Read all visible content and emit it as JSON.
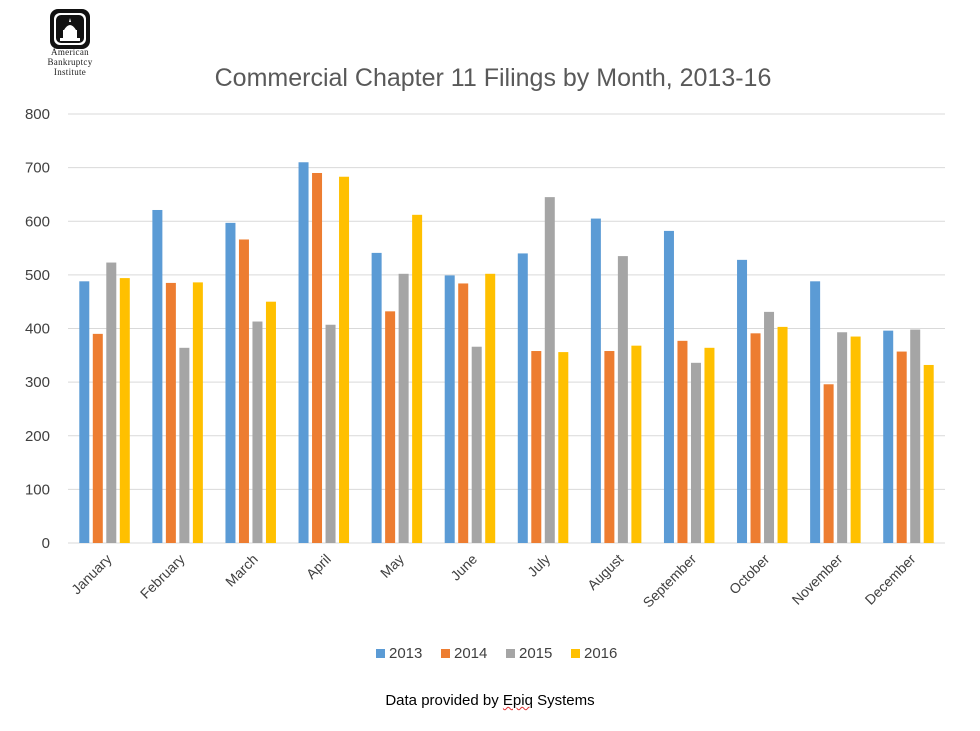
{
  "logo": {
    "line1": "American",
    "line2": "Bankruptcy",
    "line3": "Institute"
  },
  "footer": {
    "prefix": "Data provided by ",
    "brand": "Epiq",
    "suffix": " Systems"
  },
  "chart_data": {
    "type": "bar",
    "title": "Commercial Chapter 11 Filings by Month, 2013-16",
    "xlabel": "",
    "ylabel": "",
    "ylim": [
      0,
      800
    ],
    "yticks": [
      0,
      100,
      200,
      300,
      400,
      500,
      600,
      700,
      800
    ],
    "grid": true,
    "legend_position": "bottom",
    "categories": [
      "January",
      "February",
      "March",
      "April",
      "May",
      "June",
      "July",
      "August",
      "September",
      "October",
      "November",
      "December"
    ],
    "series": [
      {
        "name": "2013",
        "color": "#5b9bd5",
        "values": [
          488,
          621,
          597,
          710,
          541,
          499,
          540,
          605,
          582,
          528,
          488,
          396
        ]
      },
      {
        "name": "2014",
        "color": "#ed7d31",
        "values": [
          390,
          485,
          566,
          690,
          432,
          484,
          358,
          358,
          377,
          391,
          296,
          357
        ]
      },
      {
        "name": "2015",
        "color": "#a5a5a5",
        "values": [
          523,
          364,
          413,
          407,
          502,
          366,
          645,
          535,
          336,
          431,
          393,
          398
        ]
      },
      {
        "name": "2016",
        "color": "#ffc000",
        "values": [
          494,
          486,
          450,
          683,
          612,
          502,
          356,
          368,
          364,
          403,
          385,
          332
        ]
      }
    ]
  }
}
